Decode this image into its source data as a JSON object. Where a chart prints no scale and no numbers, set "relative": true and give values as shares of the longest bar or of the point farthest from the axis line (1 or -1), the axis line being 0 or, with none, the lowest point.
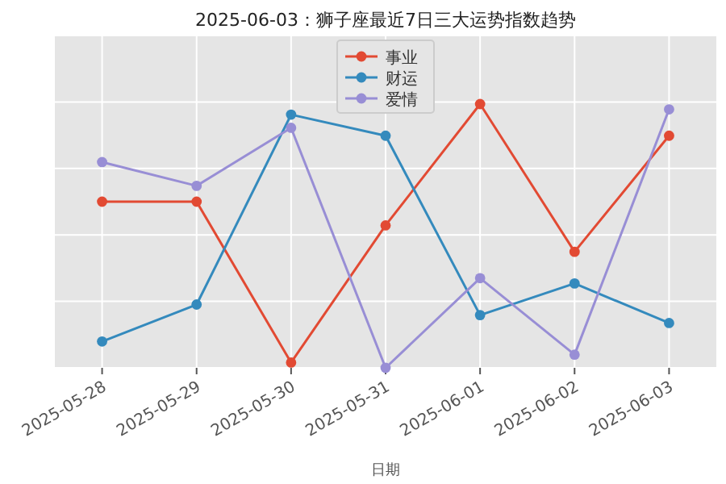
{
  "chart_data": {
    "type": "line",
    "title": "2025-06-03：狮子座最近7日三大运势指数趋势",
    "xlabel": "日期",
    "relative": true,
    "grid": true,
    "legend": "top",
    "marker": "circle",
    "categories": [
      "2025-05-28",
      "2025-05-29",
      "2025-05-30",
      "2025-05-31",
      "2025-06-01",
      "2025-06-02",
      "2025-06-03"
    ],
    "series": [
      {
        "name": "事业",
        "color": "#e24a33",
        "values": [
          0.63,
          0.63,
          0.02,
          0.54,
          1,
          0.44,
          0.88
        ]
      },
      {
        "name": "财运",
        "color": "#348abd",
        "values": [
          0.1,
          0.24,
          0.96,
          0.88,
          0.2,
          0.32,
          0.17
        ]
      },
      {
        "name": "爱情",
        "color": "#988ed5",
        "values": [
          0.78,
          0.69,
          0.91,
          0,
          0.34,
          0.05,
          0.98
        ]
      }
    ]
  }
}
